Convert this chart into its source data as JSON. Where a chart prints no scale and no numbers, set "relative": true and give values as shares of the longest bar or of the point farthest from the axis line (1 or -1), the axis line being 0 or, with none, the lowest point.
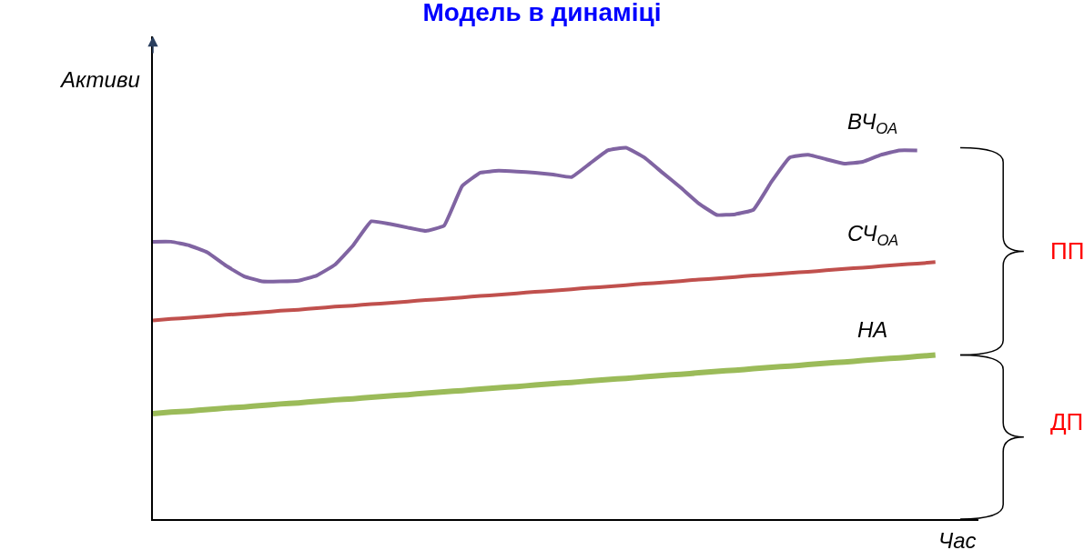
{
  "chart_data": {
    "type": "line",
    "title": "Модель в динаміці",
    "xlabel": "Час",
    "ylabel": "Активи",
    "relative": true,
    "legend": false,
    "marker": "none",
    "line_style": "solid",
    "categories": [
      null,
      null,
      null,
      null,
      null,
      null,
      null,
      null,
      null,
      null,
      null,
      null,
      null,
      null,
      null,
      null,
      null,
      null,
      null,
      null,
      null,
      null,
      null,
      null,
      null,
      null,
      null,
      null,
      null,
      null,
      null,
      null,
      null,
      null,
      null,
      null,
      null,
      null,
      null,
      null,
      null,
      null,
      null,
      null
    ],
    "series": [
      {
        "name": "ВЧ$_{ОА}$",
        "color": "#8064a2",
        "values": [
          0.747,
          0.747,
          0.737,
          0.718,
          0.683,
          0.654,
          0.64,
          0.64,
          0.642,
          0.656,
          0.685,
          0.737,
          0.802,
          0.795,
          0.785,
          0.776,
          0.79,
          0.897,
          0.933,
          0.938,
          0.936,
          0.933,
          0.928,
          0.921,
          0.957,
          0.993,
          1.0,
          0.974,
          0.933,
          0.893,
          0.85,
          0.819,
          0.821,
          0.833,
          0.909,
          0.974,
          0.981,
          0.969,
          0.957,
          0.962,
          0.981,
          0.993,
          0.993,
          null
        ]
      },
      {
        "name": "СЧ$_{ОА}$",
        "color": "#c0504d",
        "values": [
          0.535,
          0.539,
          0.542,
          0.546,
          0.55,
          0.553,
          0.557,
          0.561,
          0.564,
          0.568,
          0.572,
          0.575,
          0.579,
          0.582,
          0.586,
          0.59,
          0.593,
          0.597,
          0.601,
          0.604,
          0.608,
          0.612,
          0.615,
          0.619,
          0.623,
          0.626,
          0.63,
          0.634,
          0.637,
          0.641,
          0.645,
          0.648,
          0.652,
          0.656,
          0.659,
          0.663,
          0.666,
          0.67,
          0.674,
          0.677,
          0.681,
          0.685,
          0.688,
          0.692
        ]
      },
      {
        "name": "НА",
        "color": "#9bbb59",
        "values": [
          0.284,
          0.288,
          0.291,
          0.295,
          0.299,
          0.302,
          0.306,
          0.31,
          0.313,
          0.317,
          0.321,
          0.324,
          0.328,
          0.332,
          0.335,
          0.339,
          0.343,
          0.346,
          0.35,
          0.354,
          0.357,
          0.361,
          0.365,
          0.368,
          0.372,
          0.376,
          0.379,
          0.383,
          0.387,
          0.39,
          0.394,
          0.398,
          0.401,
          0.405,
          0.409,
          0.412,
          0.416,
          0.42,
          0.423,
          0.427,
          0.431,
          0.434,
          0.438,
          0.442
        ]
      }
    ],
    "annotations": [
      "ПП",
      "ДП"
    ]
  }
}
